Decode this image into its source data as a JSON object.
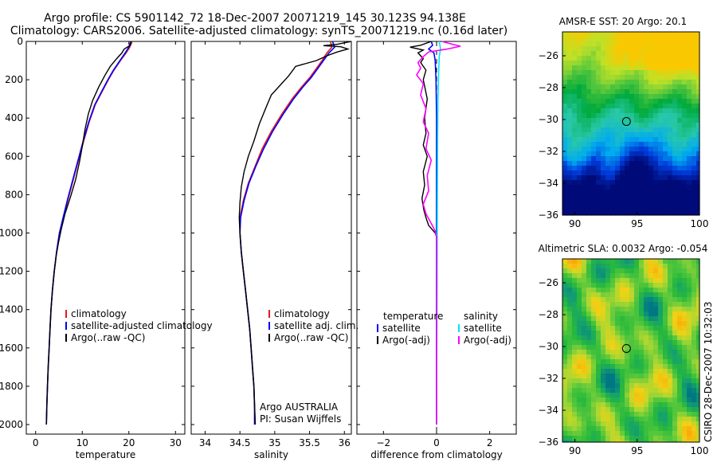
{
  "title_lines": [
    "Argo profile: CS 5901142_72 18-Dec-2007 20071219_145 30.123S 94.138E",
    "Climatology: CARS2006. Satellite-adjusted climatology: synTS_20071219.nc (0.16d later)"
  ],
  "colors": {
    "climatology": "#e41a1c",
    "satellite": "#0000ff",
    "argo": "#000000",
    "salinity_sat": "#00e5ee",
    "salinity_argo": "#ff00ff"
  },
  "side_label": "CSIRO 28-Dec-2007 10:32:03",
  "attribution": [
    "Argo AUSTRALIA",
    "PI: Susan Wijffels"
  ],
  "chart_data": [
    {
      "type": "line",
      "name": "temperature-profile",
      "xlabel": "temperature",
      "xlim": [
        -2,
        32
      ],
      "ylim": [
        2050,
        0
      ],
      "xticks": [
        0,
        10,
        20,
        30
      ],
      "yticks": [
        0,
        200,
        400,
        600,
        800,
        1000,
        1200,
        1400,
        1600,
        1800,
        2000
      ],
      "legend": [
        "climatology",
        "satellite-adjusted climatology",
        "Argo(..raw -QC)"
      ],
      "series": [
        {
          "name": "climatology",
          "color": "#e41a1c",
          "points": [
            [
              20.7,
              0
            ],
            [
              20.2,
              30
            ],
            [
              19.4,
              60
            ],
            [
              18.2,
              100
            ],
            [
              16.8,
              150
            ],
            [
              15.6,
              200
            ],
            [
              14.3,
              260
            ],
            [
              12.8,
              330
            ],
            [
              11.5,
              420
            ],
            [
              10.3,
              520
            ],
            [
              9.2,
              620
            ],
            [
              8.1,
              720
            ],
            [
              6.9,
              830
            ],
            [
              6.0,
              920
            ],
            [
              5.1,
              1000
            ],
            [
              4.5,
              1100
            ],
            [
              4.0,
              1200
            ],
            [
              3.6,
              1300
            ],
            [
              3.3,
              1400
            ],
            [
              3.1,
              1500
            ],
            [
              2.9,
              1600
            ],
            [
              2.7,
              1700
            ],
            [
              2.55,
              1800
            ],
            [
              2.4,
              1900
            ],
            [
              2.3,
              2000
            ]
          ]
        },
        {
          "name": "satellite-adjusted climatology",
          "color": "#0000ff",
          "points": [
            [
              20.4,
              0
            ],
            [
              20.0,
              30
            ],
            [
              19.2,
              60
            ],
            [
              18.1,
              100
            ],
            [
              16.7,
              150
            ],
            [
              15.5,
              200
            ],
            [
              14.2,
              260
            ],
            [
              12.7,
              330
            ],
            [
              11.4,
              420
            ],
            [
              10.2,
              520
            ],
            [
              9.1,
              620
            ],
            [
              8.0,
              720
            ],
            [
              6.8,
              830
            ],
            [
              5.9,
              920
            ],
            [
              5.1,
              1000
            ],
            [
              4.5,
              1100
            ],
            [
              4.0,
              1200
            ],
            [
              3.6,
              1300
            ],
            [
              3.3,
              1400
            ],
            [
              3.1,
              1500
            ],
            [
              2.9,
              1600
            ],
            [
              2.7,
              1700
            ],
            [
              2.55,
              1800
            ],
            [
              2.4,
              1900
            ],
            [
              2.3,
              2000
            ]
          ]
        },
        {
          "name": "Argo(..raw -QC)",
          "color": "#000000",
          "points": [
            [
              20.5,
              0
            ],
            [
              20.3,
              20
            ],
            [
              19.0,
              40
            ],
            [
              18.5,
              60
            ],
            [
              17.4,
              90
            ],
            [
              16.0,
              130
            ],
            [
              14.8,
              180
            ],
            [
              13.5,
              240
            ],
            [
              12.2,
              310
            ],
            [
              11.3,
              380
            ],
            [
              10.6,
              460
            ],
            [
              10.0,
              550
            ],
            [
              9.4,
              630
            ],
            [
              8.6,
              720
            ],
            [
              7.5,
              810
            ],
            [
              6.3,
              900
            ],
            [
              5.5,
              980
            ],
            [
              4.9,
              1050
            ],
            [
              4.4,
              1120
            ],
            [
              4.0,
              1200
            ],
            [
              3.6,
              1300
            ],
            [
              3.3,
              1400
            ],
            [
              3.1,
              1500
            ],
            [
              2.9,
              1600
            ],
            [
              2.7,
              1700
            ],
            [
              2.55,
              1800
            ],
            [
              2.4,
              1900
            ],
            [
              2.3,
              2000
            ]
          ]
        }
      ]
    },
    {
      "type": "line",
      "name": "salinity-profile",
      "xlabel": "salinity",
      "xlim": [
        33.8,
        36.1
      ],
      "ylim": [
        2050,
        0
      ],
      "xticks": [
        34,
        34.5,
        35,
        35.5,
        36
      ],
      "xticklabels": [
        "34",
        "34.5",
        "35",
        "35.5",
        "36"
      ],
      "legend": [
        "climatology",
        "satellite adj. clim.",
        "Argo(..raw -QC)"
      ],
      "series": [
        {
          "name": "climatology",
          "color": "#e41a1c",
          "points": [
            [
              35.8,
              0
            ],
            [
              35.82,
              30
            ],
            [
              35.75,
              60
            ],
            [
              35.68,
              100
            ],
            [
              35.6,
              140
            ],
            [
              35.5,
              190
            ],
            [
              35.38,
              240
            ],
            [
              35.25,
              300
            ],
            [
              35.1,
              380
            ],
            [
              34.95,
              470
            ],
            [
              34.82,
              560
            ],
            [
              34.72,
              650
            ],
            [
              34.62,
              740
            ],
            [
              34.55,
              830
            ],
            [
              34.5,
              920
            ],
            [
              34.5,
              1000
            ],
            [
              34.52,
              1100
            ],
            [
              34.55,
              1200
            ],
            [
              34.58,
              1300
            ],
            [
              34.61,
              1400
            ],
            [
              34.64,
              1500
            ],
            [
              34.66,
              1600
            ],
            [
              34.68,
              1700
            ],
            [
              34.7,
              1800
            ],
            [
              34.71,
              1900
            ],
            [
              34.72,
              2000
            ]
          ]
        },
        {
          "name": "satellite adj. clim.",
          "color": "#0000ff",
          "points": [
            [
              35.83,
              0
            ],
            [
              35.86,
              30
            ],
            [
              35.78,
              60
            ],
            [
              35.7,
              100
            ],
            [
              35.62,
              140
            ],
            [
              35.52,
              190
            ],
            [
              35.4,
              240
            ],
            [
              35.27,
              300
            ],
            [
              35.12,
              380
            ],
            [
              34.97,
              470
            ],
            [
              34.84,
              560
            ],
            [
              34.73,
              650
            ],
            [
              34.63,
              740
            ],
            [
              34.56,
              830
            ],
            [
              34.51,
              920
            ],
            [
              34.5,
              1000
            ],
            [
              34.52,
              1100
            ],
            [
              34.55,
              1200
            ],
            [
              34.58,
              1300
            ],
            [
              34.61,
              1400
            ],
            [
              34.64,
              1500
            ],
            [
              34.66,
              1600
            ],
            [
              34.68,
              1700
            ],
            [
              34.7,
              1800
            ],
            [
              34.71,
              1900
            ],
            [
              34.71,
              2000
            ]
          ]
        },
        {
          "name": "Argo(..raw -QC)",
          "color": "#000000",
          "points": [
            [
              36.1,
              0
            ],
            [
              35.9,
              15
            ],
            [
              35.7,
              22
            ],
            [
              35.95,
              28
            ],
            [
              36.05,
              40
            ],
            [
              35.9,
              55
            ],
            [
              35.75,
              75
            ],
            [
              35.6,
              100
            ],
            [
              35.3,
              130
            ],
            [
              35.2,
              180
            ],
            [
              35.1,
              220
            ],
            [
              34.95,
              280
            ],
            [
              34.88,
              340
            ],
            [
              34.78,
              430
            ],
            [
              34.7,
              520
            ],
            [
              34.62,
              600
            ],
            [
              34.56,
              680
            ],
            [
              34.52,
              760
            ],
            [
              34.5,
              840
            ],
            [
              34.49,
              920
            ],
            [
              34.5,
              1000
            ],
            [
              34.52,
              1100
            ],
            [
              34.55,
              1200
            ],
            [
              34.58,
              1300
            ],
            [
              34.61,
              1400
            ],
            [
              34.64,
              1500
            ],
            [
              34.66,
              1600
            ],
            [
              34.68,
              1700
            ],
            [
              34.7,
              1800
            ],
            [
              34.71,
              1900
            ],
            [
              34.72,
              2000
            ]
          ]
        }
      ]
    },
    {
      "type": "line",
      "name": "difference-profile",
      "xlabel": "difference from climatology",
      "xlim": [
        -3,
        3
      ],
      "ylim": [
        2050,
        0
      ],
      "xticks": [
        -2,
        0,
        2
      ],
      "legend": [
        "temperature",
        "satellite",
        "Argo(-adj)",
        "salinity",
        "satellite",
        "Argo(-adj)"
      ],
      "series": [
        {
          "name": "temperature satellite",
          "color": "#0000ff",
          "points": [
            [
              -0.2,
              0
            ],
            [
              -0.15,
              20
            ],
            [
              -0.3,
              40
            ],
            [
              -0.1,
              60
            ],
            [
              -0.05,
              100
            ],
            [
              -0.02,
              200
            ],
            [
              0,
              400
            ],
            [
              0,
              2000
            ]
          ]
        },
        {
          "name": "temperature Argo(-adj)",
          "color": "#000000",
          "points": [
            [
              -0.2,
              0
            ],
            [
              -0.6,
              20
            ],
            [
              -1.0,
              30
            ],
            [
              -0.5,
              45
            ],
            [
              -0.7,
              60
            ],
            [
              -0.5,
              90
            ],
            [
              -0.6,
              110
            ],
            [
              -0.4,
              150
            ],
            [
              -0.5,
              200
            ],
            [
              -0.35,
              300
            ],
            [
              -0.45,
              400
            ],
            [
              -0.4,
              480
            ],
            [
              -0.5,
              540
            ],
            [
              -0.35,
              600
            ],
            [
              -0.5,
              680
            ],
            [
              -0.45,
              750
            ],
            [
              -0.55,
              820
            ],
            [
              -0.48,
              880
            ],
            [
              -0.4,
              920
            ],
            [
              -0.3,
              960
            ],
            [
              -0.05,
              1000
            ],
            [
              0,
              1020
            ],
            [
              0,
              2000
            ]
          ]
        },
        {
          "name": "salinity satellite",
          "color": "#00e5ee",
          "points": [
            [
              0.1,
              0
            ],
            [
              0.15,
              40
            ],
            [
              0.1,
              80
            ],
            [
              0.08,
              150
            ],
            [
              0.05,
              300
            ],
            [
              0.04,
              500
            ],
            [
              0.03,
              800
            ],
            [
              0.02,
              1200
            ],
            [
              0.01,
              1600
            ],
            [
              0,
              2000
            ]
          ]
        },
        {
          "name": "salinity Argo(-adj)",
          "color": "#ff00ff",
          "points": [
            [
              0.2,
              0
            ],
            [
              0.6,
              15
            ],
            [
              0.9,
              25
            ],
            [
              0.4,
              40
            ],
            [
              -0.3,
              55
            ],
            [
              -0.5,
              80
            ],
            [
              -0.7,
              110
            ],
            [
              -0.6,
              140
            ],
            [
              -0.75,
              175
            ],
            [
              -0.5,
              220
            ],
            [
              -0.6,
              280
            ],
            [
              -0.4,
              350
            ],
            [
              -0.5,
              420
            ],
            [
              -0.3,
              480
            ],
            [
              -0.4,
              560
            ],
            [
              -0.2,
              620
            ],
            [
              -0.35,
              700
            ],
            [
              -0.3,
              780
            ],
            [
              -0.5,
              850
            ],
            [
              -0.4,
              900
            ],
            [
              -0.2,
              950
            ],
            [
              -0.05,
              990
            ],
            [
              0,
              1020
            ],
            [
              0,
              2000
            ]
          ]
        }
      ]
    }
  ],
  "maps": [
    {
      "name": "sst-map",
      "title": "AMSR-E SST: 20 Argo: 20.1",
      "xticks": [
        90,
        95,
        100
      ],
      "yticks": [
        -26,
        -28,
        -30,
        -32,
        -34,
        -36
      ],
      "xlim": [
        89,
        100
      ],
      "ylim": [
        -36,
        -24.5
      ],
      "marker": [
        94.138,
        -30.123
      ]
    },
    {
      "name": "sla-map",
      "title": "Altimetric SLA: 0.0032 Argo: -0.054",
      "xticks": [
        90,
        95,
        100
      ],
      "yticks": [
        -26,
        -28,
        -30,
        -32,
        -34,
        -36
      ],
      "xlim": [
        89,
        100
      ],
      "ylim": [
        -36,
        -24.5
      ],
      "marker": [
        94.138,
        -30.123
      ]
    }
  ]
}
